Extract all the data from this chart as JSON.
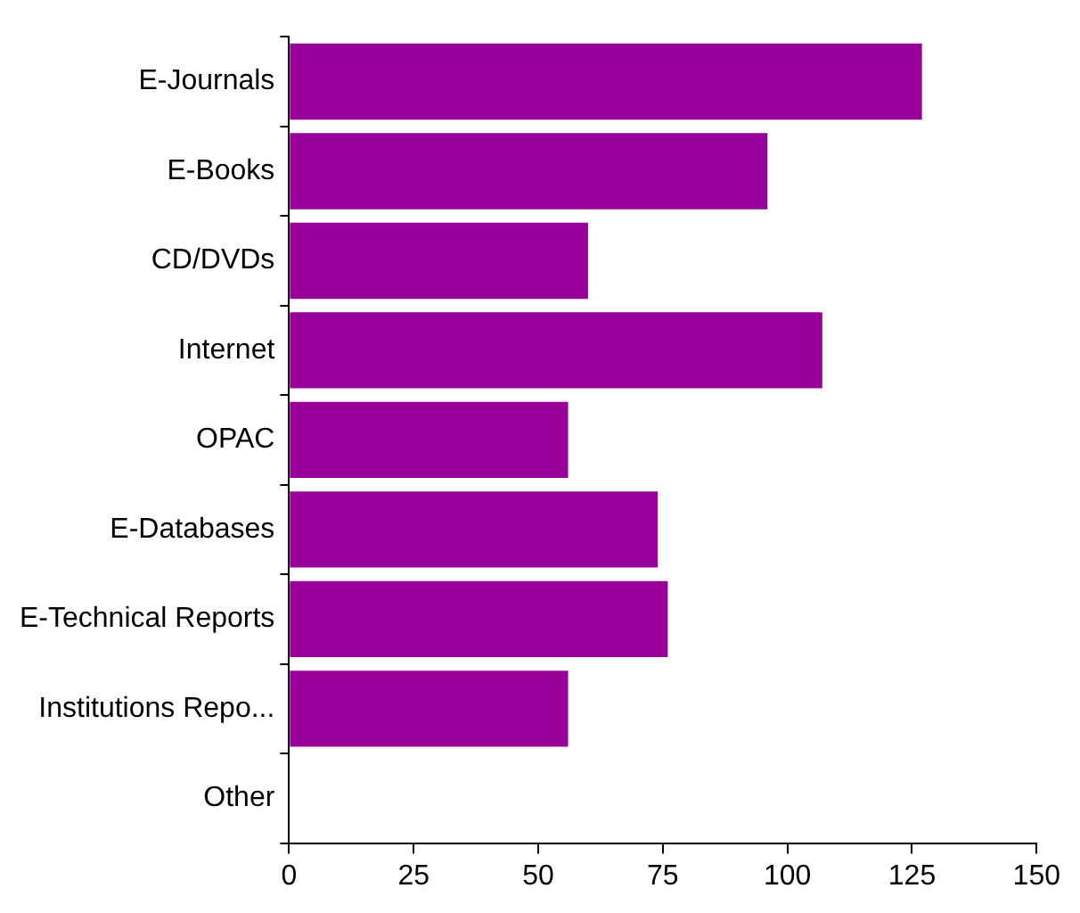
{
  "chart_data": {
    "type": "bar",
    "orientation": "horizontal",
    "categories": [
      "E-Journals",
      "E-Books",
      "CD/DVDs",
      "Internet",
      "OPAC",
      "E-Databases",
      "E-Technical Reports",
      "Institutions Repo...",
      "Other"
    ],
    "values": [
      127,
      96,
      60,
      107,
      56,
      74,
      76,
      56,
      0
    ],
    "color": "#990099",
    "xlim": [
      0,
      150
    ],
    "xticks": [
      0,
      25,
      50,
      75,
      100,
      125,
      150
    ],
    "grid": false,
    "legend": false
  }
}
